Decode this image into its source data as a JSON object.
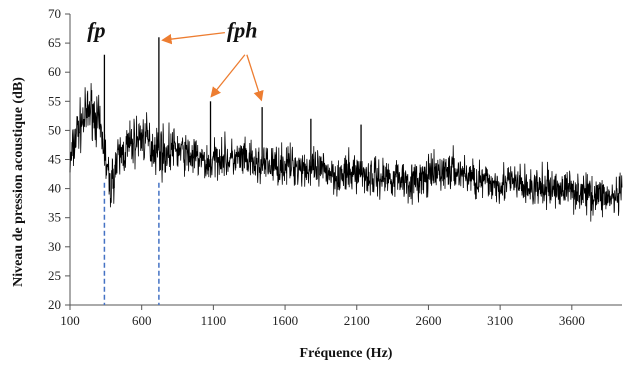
{
  "chart_data": {
    "type": "line",
    "xlabel": "Fréquence (Hz)",
    "ylabel": "Niveau de pression acoustique (dB)",
    "xlim": [
      100,
      3950
    ],
    "ylim": [
      20,
      70
    ],
    "xticks": [
      100,
      600,
      1100,
      1600,
      2100,
      2600,
      3100,
      3600
    ],
    "yticks": [
      20,
      25,
      30,
      35,
      40,
      45,
      50,
      55,
      60,
      65,
      70
    ],
    "grid": false,
    "legend": "none",
    "line_color": "#000000",
    "annotation_color": "#ED7D31",
    "marker_line_color": "#4472C4",
    "series": [
      {
        "x": [
          100,
          150,
          200,
          250,
          300,
          340,
          360,
          380,
          420,
          460,
          500,
          550,
          600,
          650,
          680,
          720,
          760,
          820,
          900,
          1000,
          1080,
          1150,
          1200,
          1300,
          1400,
          1500,
          1600,
          1700,
          1800,
          1900,
          2000,
          2100,
          2200,
          2300,
          2400,
          2500,
          2600,
          2700,
          2800,
          2900,
          3000,
          3100,
          3200,
          3300,
          3400,
          3500,
          3600,
          3700,
          3800,
          3900,
          3950
        ],
        "values": [
          44,
          50,
          52,
          54,
          51,
          47,
          43,
          40,
          44,
          46,
          47,
          48,
          49,
          48,
          47,
          47,
          46,
          47,
          46,
          45,
          44,
          46,
          45,
          45,
          44,
          44,
          44,
          44,
          43,
          43,
          42,
          43,
          42,
          42,
          42,
          41,
          42,
          43,
          43,
          42,
          41,
          41,
          41,
          40,
          40,
          40,
          40,
          39,
          39,
          38,
          39
        ]
      }
    ],
    "peaks": [
      {
        "x": 340,
        "y": 63
      },
      {
        "x": 720,
        "y": 66
      },
      {
        "x": 1080,
        "y": 55
      },
      {
        "x": 1440,
        "y": 54
      },
      {
        "x": 1780,
        "y": 52
      },
      {
        "x": 2130,
        "y": 51
      }
    ],
    "annotations": [
      {
        "label": "fp",
        "x": 340,
        "y": 66
      },
      {
        "label": "fph",
        "x": 1250,
        "y": 66
      }
    ],
    "markers_x": [
      340,
      720
    ]
  }
}
